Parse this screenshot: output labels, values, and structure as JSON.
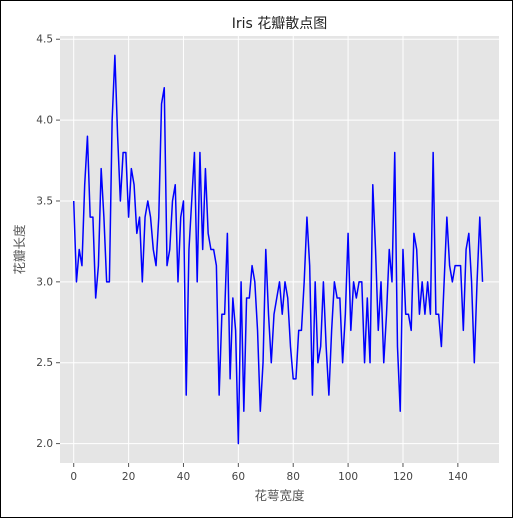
{
  "chart_data": {
    "type": "line",
    "title": "Iris 花瓣散点图",
    "xlabel": "花萼宽度",
    "ylabel": "花瓣长度",
    "xlim": [
      -5,
      155
    ],
    "ylim": [
      1.88,
      4.52
    ],
    "xticks": [
      0,
      20,
      40,
      60,
      80,
      100,
      120,
      140
    ],
    "yticks": [
      2.0,
      2.5,
      3.0,
      3.5,
      4.0,
      4.5
    ],
    "xtick_labels": [
      "0",
      "20",
      "40",
      "60",
      "80",
      "100",
      "120",
      "140"
    ],
    "ytick_labels": [
      "2.0",
      "2.5",
      "3.0",
      "3.5",
      "4.0",
      "4.5"
    ],
    "grid": true,
    "colors": {
      "line": "#0000ff",
      "plot_bg": "#e5e5e5",
      "grid": "#ffffff"
    },
    "series": [
      {
        "values": [
          3.5,
          3.0,
          3.2,
          3.1,
          3.6,
          3.9,
          3.4,
          3.4,
          2.9,
          3.1,
          3.7,
          3.4,
          3.0,
          3.0,
          4.0,
          4.4,
          3.9,
          3.5,
          3.8,
          3.8,
          3.4,
          3.7,
          3.6,
          3.3,
          3.4,
          3.0,
          3.4,
          3.5,
          3.4,
          3.2,
          3.1,
          3.4,
          4.1,
          4.2,
          3.1,
          3.2,
          3.5,
          3.6,
          3.0,
          3.4,
          3.5,
          2.3,
          3.2,
          3.5,
          3.8,
          3.0,
          3.8,
          3.2,
          3.7,
          3.3,
          3.2,
          3.2,
          3.1,
          2.3,
          2.8,
          2.8,
          3.3,
          2.4,
          2.9,
          2.7,
          2.0,
          3.0,
          2.2,
          2.9,
          2.9,
          3.1,
          3.0,
          2.7,
          2.2,
          2.5,
          3.2,
          2.8,
          2.5,
          2.8,
          2.9,
          3.0,
          2.8,
          3.0,
          2.9,
          2.6,
          2.4,
          2.4,
          2.7,
          2.7,
          3.0,
          3.4,
          3.1,
          2.3,
          3.0,
          2.5,
          2.6,
          3.0,
          2.6,
          2.3,
          2.7,
          3.0,
          2.9,
          2.9,
          2.5,
          2.8,
          3.3,
          2.7,
          3.0,
          2.9,
          3.0,
          3.0,
          2.5,
          2.9,
          2.5,
          3.6,
          3.2,
          2.7,
          3.0,
          2.5,
          2.8,
          3.2,
          3.0,
          3.8,
          2.6,
          2.2,
          3.2,
          2.8,
          2.8,
          2.7,
          3.3,
          3.2,
          2.8,
          3.0,
          2.8,
          3.0,
          2.8,
          3.8,
          2.8,
          2.8,
          2.6,
          3.0,
          3.4,
          3.1,
          3.0,
          3.1,
          3.1,
          3.1,
          2.7,
          3.2,
          3.3,
          3.0,
          2.5,
          3.0,
          3.4,
          3.0
        ]
      }
    ]
  }
}
